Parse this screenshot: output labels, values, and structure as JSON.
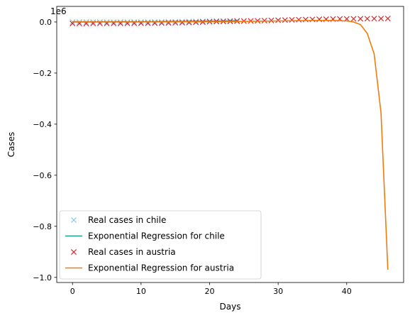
{
  "chart_data": {
    "type": "line",
    "xlabel": "Days",
    "ylabel": "Cases",
    "y_offset_text": "1e6",
    "xlim": [
      -2.3,
      48.3
    ],
    "ylim": [
      -1.02,
      0.061
    ],
    "x_ticks": [
      0,
      10,
      20,
      30,
      40
    ],
    "x_tick_labels": [
      "0",
      "10",
      "20",
      "30",
      "40"
    ],
    "y_ticks": [
      0.0,
      -0.2,
      -0.4,
      -0.6,
      -0.8,
      -1.0
    ],
    "y_tick_labels": [
      "0.0",
      "−0.2",
      "−0.4",
      "−0.6",
      "−0.8",
      "−1.0"
    ],
    "grid": false,
    "legend_position": "lower-left",
    "series": [
      {
        "name": "Real cases in chile",
        "kind": "marker",
        "marker": "x",
        "color": "#8fc9ec",
        "x": [
          0,
          1,
          2,
          3,
          4,
          5,
          6,
          7,
          8,
          9,
          10,
          11,
          12,
          13,
          14,
          15,
          16,
          17,
          18,
          19,
          20,
          21,
          22,
          23,
          24
        ],
        "y": [
          0.0,
          0.0,
          0.0,
          0.0,
          0.0,
          0.0,
          0.0,
          0.0,
          0.0001,
          0.0001,
          0.0002,
          0.0002,
          0.0004,
          0.0006,
          0.0008,
          0.0011,
          0.0014,
          0.0018,
          0.0022,
          0.0026,
          0.0031,
          0.0036,
          0.0041,
          0.0046,
          0.0052
        ]
      },
      {
        "name": "Exponential Regression for chile",
        "kind": "line",
        "color": "#1a9a8e",
        "x": [
          0,
          2,
          4,
          6,
          8,
          10,
          12,
          14,
          16,
          18,
          20,
          22,
          24
        ],
        "y": [
          0.0001,
          0.0001,
          0.0002,
          0.0003,
          0.0004,
          0.0006,
          0.0009,
          0.0013,
          0.0018,
          0.0024,
          0.0031,
          0.004,
          0.005
        ]
      },
      {
        "name": "Real cases in austria",
        "kind": "marker",
        "marker": "x",
        "color": "#d62728",
        "x": [
          0,
          1,
          2,
          3,
          4,
          5,
          6,
          7,
          8,
          9,
          10,
          11,
          12,
          13,
          14,
          15,
          16,
          17,
          18,
          19,
          20,
          21,
          22,
          23,
          24,
          25,
          26,
          27,
          28,
          29,
          30,
          31,
          32,
          33,
          34,
          35,
          36,
          37,
          38,
          39,
          40,
          41,
          42,
          43,
          44,
          45,
          46
        ],
        "y": [
          -0.006,
          -0.006,
          -0.006,
          -0.0058,
          -0.0058,
          -0.0056,
          -0.0056,
          -0.0055,
          -0.0054,
          -0.0052,
          -0.005,
          -0.0048,
          -0.0045,
          -0.0042,
          -0.0038,
          -0.0033,
          -0.0027,
          -0.002,
          -0.0012,
          -0.0003,
          0.0008,
          0.0018,
          0.002,
          0.0025,
          0.003,
          0.0035,
          0.004,
          0.0047,
          0.0052,
          0.006,
          0.0068,
          0.0075,
          0.0083,
          0.009,
          0.0095,
          0.01,
          0.0105,
          0.011,
          0.0115,
          0.0118,
          0.012,
          0.0123,
          0.0126,
          0.0128,
          0.013,
          0.0133,
          0.0135
        ]
      },
      {
        "name": "Exponential Regression for austria",
        "kind": "line",
        "color": "#f07d0a",
        "x": [
          0,
          5,
          10,
          15,
          20,
          25,
          30,
          35,
          38,
          40,
          41,
          42,
          43,
          44,
          45,
          46
        ],
        "y": [
          0.0,
          0.0,
          0.0,
          0.0005,
          0.001,
          0.002,
          0.004,
          0.006,
          0.006,
          0.004,
          0.0,
          -0.01,
          -0.045,
          -0.125,
          -0.355,
          -0.97
        ]
      }
    ]
  }
}
